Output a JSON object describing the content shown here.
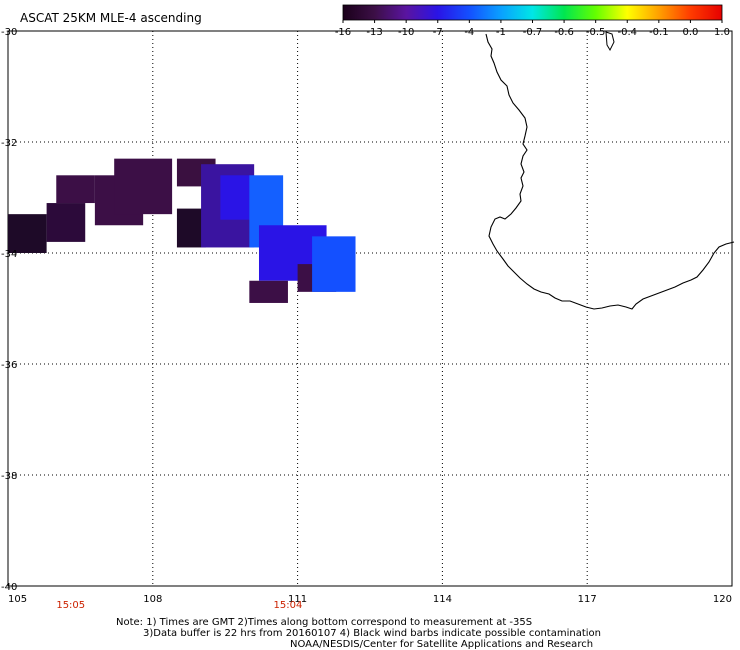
{
  "title": "ASCAT 25KM MLE-4 ascending",
  "colorbar": {
    "ticks": [
      "-16",
      "-13",
      "-10",
      "-7",
      "-4",
      "-1",
      "-0.7",
      "-0.6",
      "-0.5",
      "-0.4",
      "-0.1",
      "0.0",
      "1.0"
    ],
    "colors": [
      "#1a001a",
      "#3c0f46",
      "#5a14a0",
      "#2a14e6",
      "#1450ff",
      "#0aa0ff",
      "#00e6e6",
      "#00e650",
      "#64ff00",
      "#ffff00",
      "#ffa000",
      "#ff3c00",
      "#e60000"
    ]
  },
  "axes": {
    "x_ticks": [
      "105",
      "108",
      "111",
      "114",
      "117",
      "120"
    ],
    "y_ticks": [
      "-30",
      "-32",
      "-34",
      "-36",
      "-38",
      "-40"
    ],
    "xlim": [
      105,
      120
    ],
    "ylim": [
      -40,
      -30
    ]
  },
  "times": [
    {
      "label": "15:05",
      "lon": 106.3
    },
    {
      "label": "15:04",
      "lon": 110.8
    }
  ],
  "notes": [
    "Note: 1) Times are GMT 2)Times along bottom correspond to measurement at -35S",
    "3)Data buffer is 22 hrs from 20160107 4) Black wind barbs indicate possible contamination",
    "NOAA/NESDIS/Center for Satellite Applications and Research"
  ],
  "chart_data": {
    "type": "heatmap",
    "title": "ASCAT 25KM MLE-4 ascending",
    "xlim": [
      105,
      120
    ],
    "ylim": [
      -40,
      -30
    ],
    "grid": true,
    "value_scale": [
      "-16",
      "-13",
      "-10",
      "-7",
      "-4",
      "-1",
      "-0.7",
      "-0.6",
      "-0.5",
      "-0.4",
      "-0.1",
      "0.0",
      "1.0"
    ],
    "cells": [
      {
        "lon0": 105.0,
        "lon1": 105.8,
        "lat0": -33.3,
        "lat1": -34.0,
        "color": "#1e0a28"
      },
      {
        "lon0": 105.8,
        "lon1": 106.6,
        "lat0": -33.1,
        "lat1": -33.8,
        "color": "#2c0a3a"
      },
      {
        "lon0": 106.0,
        "lon1": 106.8,
        "lat0": -32.6,
        "lat1": -33.1,
        "color": "#3c0f46"
      },
      {
        "lon0": 106.8,
        "lon1": 107.8,
        "lat0": -32.6,
        "lat1": -33.5,
        "color": "#3c0f46"
      },
      {
        "lon0": 107.2,
        "lon1": 108.4,
        "lat0": -32.3,
        "lat1": -33.3,
        "color": "#3c0f46"
      },
      {
        "lon0": 108.5,
        "lon1": 109.3,
        "lat0": -32.3,
        "lat1": -32.8,
        "color": "#3a1040"
      },
      {
        "lon0": 108.5,
        "lon1": 109.1,
        "lat0": -33.2,
        "lat1": -33.9,
        "color": "#1e0a28"
      },
      {
        "lon0": 109.0,
        "lon1": 110.1,
        "lat0": -32.4,
        "lat1": -33.9,
        "color": "#3a14a0"
      },
      {
        "lon0": 109.4,
        "lon1": 110.1,
        "lat0": -32.6,
        "lat1": -33.4,
        "color": "#2a14e6"
      },
      {
        "lon0": 110.0,
        "lon1": 110.7,
        "lat0": -32.6,
        "lat1": -33.9,
        "color": "#1460ff"
      },
      {
        "lon0": 110.2,
        "lon1": 111.6,
        "lat0": -33.5,
        "lat1": -34.5,
        "color": "#2a14e6"
      },
      {
        "lon0": 110.0,
        "lon1": 110.8,
        "lat0": -34.5,
        "lat1": -34.9,
        "color": "#3c0f46"
      },
      {
        "lon0": 111.0,
        "lon1": 111.8,
        "lat0": -34.2,
        "lat1": -34.7,
        "color": "#3c0f46"
      },
      {
        "lon0": 111.3,
        "lon1": 112.2,
        "lat0": -33.7,
        "lat1": -34.7,
        "color": "#1450ff"
      }
    ],
    "timestamps": [
      {
        "label": "15:05",
        "lon": 106.3
      },
      {
        "label": "15:04",
        "lon": 110.8
      }
    ]
  },
  "coastline_name": "Western Australia coastline"
}
